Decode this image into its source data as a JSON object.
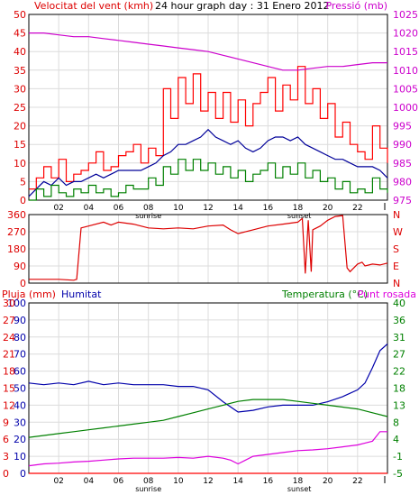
{
  "chart_data": [
    {
      "panel": "wind-pressure",
      "type": "line",
      "title": "24 hour graph day : 31 Enero 2012",
      "left_axis_label": "Velocitat del vent (kmh)",
      "right_axis_label": "Pressió (mb)",
      "ylim": [
        0,
        50
      ],
      "y2lim": [
        975,
        1025
      ],
      "left_ticks": [
        "0",
        "5",
        "10",
        "15",
        "20",
        "25",
        "30",
        "35",
        "40",
        "45",
        "50"
      ],
      "right_ticks": [
        "975",
        "980",
        "985",
        "990",
        "995",
        "1000",
        "1005",
        "1010",
        "1015",
        "1020",
        "1025"
      ],
      "xlim": [
        0,
        24
      ],
      "x_ticks": [
        "02",
        "04",
        "06",
        "08",
        "10",
        "12",
        "14",
        "16",
        "18",
        "20",
        "22"
      ],
      "sub_labels": [
        {
          "x": 8,
          "text": "sunrise"
        },
        {
          "x": 18.1,
          "text": "sunset"
        }
      ],
      "series": [
        {
          "color": "#ff0000",
          "axis": "left",
          "step": true,
          "x": [
            0,
            0.5,
            1,
            1.5,
            2,
            2.5,
            3,
            3.5,
            4,
            4.5,
            5,
            5.5,
            6,
            6.5,
            7,
            7.5,
            8,
            8.5,
            9,
            9.5,
            10,
            10.5,
            11,
            11.5,
            12,
            12.5,
            13,
            13.5,
            14,
            14.5,
            15,
            15.5,
            16,
            16.5,
            17,
            17.5,
            18,
            18.5,
            19,
            19.5,
            20,
            20.5,
            21,
            21.5,
            22,
            22.5,
            23,
            23.5,
            24
          ],
          "y": [
            3,
            6,
            9,
            6,
            11,
            5,
            7,
            8,
            10,
            13,
            8,
            9,
            12,
            13,
            15,
            10,
            14,
            12,
            30,
            22,
            33,
            26,
            34,
            24,
            29,
            22,
            29,
            21,
            27,
            20,
            26,
            29,
            33,
            24,
            31,
            27,
            36,
            26,
            30,
            22,
            26,
            17,
            21,
            15,
            13,
            11,
            20,
            14,
            10
          ]
        },
        {
          "color": "#000099",
          "axis": "left",
          "x": [
            0,
            0.5,
            1,
            1.5,
            2,
            2.5,
            3,
            3.5,
            4,
            4.5,
            5,
            5.5,
            6,
            6.5,
            7,
            7.5,
            8,
            8.5,
            9,
            9.5,
            10,
            10.5,
            11,
            11.5,
            12,
            12.5,
            13,
            13.5,
            14,
            14.5,
            15,
            15.5,
            16,
            16.5,
            17,
            17.5,
            18,
            18.5,
            19,
            19.5,
            20,
            20.5,
            21,
            21.5,
            22,
            22.5,
            23,
            23.5,
            24
          ],
          "y": [
            1,
            3,
            5,
            4,
            6,
            4,
            5,
            5,
            6,
            7,
            6,
            7,
            8,
            8,
            8,
            8,
            9,
            10,
            12,
            13,
            15,
            15,
            16,
            17,
            19,
            17,
            16,
            15,
            16,
            14,
            13,
            14,
            16,
            17,
            17,
            16,
            17,
            15,
            14,
            13,
            12,
            11,
            11,
            10,
            9,
            9,
            9,
            8,
            6
          ]
        },
        {
          "color": "#008000",
          "axis": "left",
          "step": true,
          "x": [
            0,
            0.5,
            1,
            1.5,
            2,
            2.5,
            3,
            3.5,
            4,
            4.5,
            5,
            5.5,
            6,
            6.5,
            7,
            7.5,
            8,
            8.5,
            9,
            9.5,
            10,
            10.5,
            11,
            11.5,
            12,
            12.5,
            13,
            13.5,
            14,
            14.5,
            15,
            15.5,
            16,
            16.5,
            17,
            17.5,
            18,
            18.5,
            19,
            19.5,
            20,
            20.5,
            21,
            21.5,
            22,
            22.5,
            23,
            23.5,
            24
          ],
          "y": [
            0,
            3,
            1,
            4,
            2,
            1,
            3,
            2,
            4,
            2,
            3,
            1,
            2,
            4,
            3,
            3,
            6,
            4,
            9,
            7,
            11,
            8,
            11,
            8,
            10,
            7,
            9,
            6,
            8,
            5,
            7,
            8,
            10,
            6,
            9,
            7,
            10,
            6,
            8,
            5,
            6,
            3,
            5,
            2,
            3,
            2,
            6,
            3,
            2
          ]
        },
        {
          "color": "#cc00cc",
          "axis": "right",
          "x": [
            0,
            1,
            2,
            3,
            4,
            5,
            6,
            7,
            8,
            9,
            10,
            11,
            12,
            13,
            14,
            15,
            16,
            17,
            18,
            19,
            20,
            21,
            22,
            23,
            24
          ],
          "y": [
            1020,
            1020,
            1019.5,
            1019,
            1019,
            1018.5,
            1018,
            1017.5,
            1017,
            1016.5,
            1016,
            1015.5,
            1015,
            1014,
            1013,
            1012,
            1011,
            1010,
            1010,
            1010.5,
            1011,
            1011,
            1011.5,
            1012,
            1012
          ]
        }
      ]
    },
    {
      "panel": "wind-direction",
      "type": "line",
      "ylim": [
        0,
        360
      ],
      "left_ticks": [
        "0",
        "90",
        "180",
        "270",
        "360"
      ],
      "right_ticks": [
        "N",
        "E",
        "S",
        "W",
        "N"
      ],
      "xlim": [
        0,
        24
      ],
      "series": [
        {
          "color": "#dd0000",
          "x": [
            0,
            1,
            2,
            3,
            3.2,
            3.5,
            4,
            5,
            5.5,
            6,
            7,
            7.5,
            8,
            9,
            10,
            11,
            12,
            13,
            13.5,
            14,
            15,
            16,
            17,
            18,
            18.3,
            18.5,
            18.7,
            18.9,
            19,
            19.5,
            20,
            20.5,
            21,
            21.3,
            21.5,
            22,
            22.3,
            22.5,
            23,
            23.5,
            24
          ],
          "y": [
            20,
            20,
            20,
            15,
            20,
            290,
            300,
            320,
            305,
            320,
            310,
            300,
            290,
            285,
            290,
            285,
            300,
            305,
            280,
            260,
            280,
            300,
            310,
            320,
            340,
            50,
            330,
            60,
            280,
            300,
            330,
            350,
            355,
            80,
            60,
            100,
            110,
            90,
            100,
            95,
            105
          ]
        }
      ]
    },
    {
      "panel": "humidity-temperature",
      "type": "line",
      "axis_labels": {
        "rain": "Pluja (mm)",
        "humidity": "Humitat",
        "temperature": "Temperatura (°C)",
        "dewpoint": "Punt rosada"
      },
      "ylim": [
        0,
        100
      ],
      "y2lim": [
        -5,
        40
      ],
      "y3lim": [
        0,
        30
      ],
      "left_ticks": [
        "0",
        "10",
        "20",
        "30",
        "40",
        "50",
        "60",
        "70",
        "80",
        "90",
        "100"
      ],
      "left_ticks_rain": [
        "0",
        "3",
        "6",
        "9",
        "12",
        "15",
        "18",
        "21",
        "24",
        "27",
        "30"
      ],
      "right_ticks": [
        "-5",
        "-1",
        "4",
        "8",
        "13",
        "18",
        "22",
        "27",
        "31",
        "36",
        "40"
      ],
      "x_ticks": [
        "02",
        "04",
        "06",
        "08",
        "10",
        "12",
        "14",
        "16",
        "18",
        "20",
        "22"
      ],
      "sub_labels": [
        {
          "x": 8,
          "text": "sunrise"
        },
        {
          "x": 18.1,
          "text": "sunset"
        }
      ],
      "xlim": [
        0,
        24
      ],
      "series": [
        {
          "color": "#0000aa",
          "axis": "left",
          "x": [
            0,
            1,
            2,
            3,
            4,
            5,
            6,
            7,
            8,
            9,
            10,
            11,
            12,
            13,
            14,
            15,
            16,
            17,
            18,
            19,
            20,
            21,
            22,
            22.5,
            23,
            23.5,
            24
          ],
          "y": [
            53,
            52,
            53,
            52,
            54,
            52,
            53,
            52,
            52,
            52,
            51,
            51,
            49,
            42,
            36,
            37,
            39,
            40,
            40,
            40,
            42,
            45,
            49,
            53,
            62,
            72,
            76
          ]
        },
        {
          "color": "#008000",
          "axis": "right",
          "x": [
            0,
            1,
            2,
            3,
            4,
            5,
            6,
            7,
            8,
            9,
            10,
            11,
            12,
            13,
            14,
            15,
            16,
            17,
            18,
            19,
            20,
            21,
            22,
            23,
            24
          ],
          "y": [
            4.5,
            5,
            5.5,
            6,
            6.5,
            7,
            7.5,
            8,
            8.5,
            9,
            10,
            11,
            12,
            13,
            14,
            14.5,
            14.5,
            14.5,
            14,
            13.5,
            13,
            12.5,
            12,
            11,
            10
          ]
        },
        {
          "color": "#dd00dd",
          "axis": "right",
          "x": [
            0,
            1,
            2,
            3,
            4,
            5,
            6,
            7,
            8,
            9,
            10,
            11,
            12,
            13,
            13.5,
            14,
            14.5,
            15,
            16,
            17,
            18,
            19,
            20,
            21,
            22,
            22.5,
            23,
            23.5,
            24
          ],
          "y": [
            -3,
            -2.5,
            -2.3,
            -2,
            -1.8,
            -1.5,
            -1.2,
            -1,
            -1,
            -1,
            -0.8,
            -1,
            -0.5,
            -1,
            -1.5,
            -2.5,
            -1.5,
            -0.5,
            0,
            0.5,
            1,
            1.2,
            1.5,
            2,
            2.5,
            3,
            3.5,
            6,
            6
          ]
        },
        {
          "color": "#ff0000",
          "axis": "left",
          "x": [
            0,
            24
          ],
          "y": [
            0,
            0
          ]
        }
      ]
    }
  ]
}
